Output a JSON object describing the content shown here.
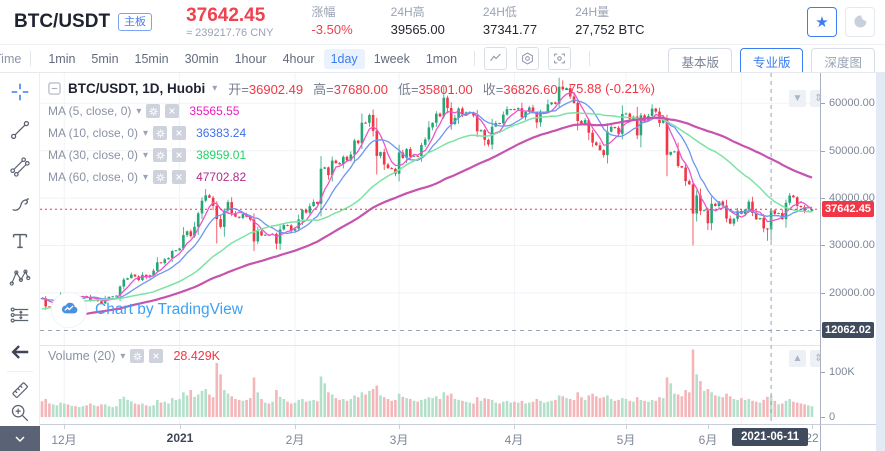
{
  "header": {
    "symbol": "BTC/USDT",
    "board_badge": "主板",
    "price": "37642.45",
    "price_cny": "≈ 239217.76 CNY",
    "stats": [
      {
        "label": "涨幅",
        "value": "-3.50%",
        "red": true
      },
      {
        "label": "24H高",
        "value": "39565.00"
      },
      {
        "label": "24H低",
        "value": "37341.77"
      },
      {
        "label": "24H量",
        "value": "27,752 BTC"
      }
    ]
  },
  "toolbar": {
    "time_label": "Time",
    "intervals": [
      "1min",
      "5min",
      "15min",
      "30min",
      "1hour",
      "4hour",
      "1day",
      "1week",
      "1mon"
    ],
    "selected_interval": "1day",
    "view_buttons": [
      {
        "label": "基本版",
        "style": "default"
      },
      {
        "label": "专业版",
        "style": "active"
      },
      {
        "label": "深度图",
        "style": "muted"
      }
    ]
  },
  "legend": {
    "title": "BTC/USDT, 1D, Huobi",
    "ohlc": [
      {
        "label": "开",
        "value": "36902.49"
      },
      {
        "label": "高",
        "value": "37680.00"
      },
      {
        "label": "低",
        "value": "35801.00"
      },
      {
        "label": "收",
        "value": "36826.60"
      }
    ],
    "change": "-75.88 (-0.21%)",
    "ma_rows": [
      {
        "label": "MA (5, close, 0)",
        "value": "35565.55",
        "color": "#ee1cc0",
        "line_color": "#ef53c8"
      },
      {
        "label": "MA (10, close, 0)",
        "value": "36383.24",
        "color": "#3c6ff0",
        "line_color": "#6e95f2"
      },
      {
        "label": "MA (30, close, 0)",
        "value": "38959.01",
        "color": "#22d465",
        "line_color": "#7ce3a4"
      },
      {
        "label": "MA (60, close, 0)",
        "value": "47702.82",
        "color": "#b42a8c",
        "line_color": "#c653ae"
      }
    ]
  },
  "volume_pane": {
    "label": "Volume (20)",
    "value": "28.429K"
  },
  "watermark": "Chart by TradingView",
  "colors": {
    "up": "#23a776",
    "down": "#f23645",
    "vol_up": "#b2e0cb",
    "vol_down": "#f5b6ba",
    "accent": "#3b7ef0"
  },
  "axes": {
    "price_ticks": [
      60000,
      50000,
      40000,
      30000,
      20000
    ],
    "volume_ticks": [
      {
        "label": "100K",
        "v": 100
      },
      {
        "label": "0",
        "v": 0
      }
    ],
    "last_price_label": "37642.45",
    "crosshair_price_label": "12062.02",
    "crosshair_date_label": "2021-06-11",
    "time_ticks": [
      {
        "label": "12月",
        "i": 6
      },
      {
        "label": "2021",
        "i": 37,
        "bold": true
      },
      {
        "label": "2月",
        "i": 68
      },
      {
        "label": "3月",
        "i": 96
      },
      {
        "label": "4月",
        "i": 127
      },
      {
        "label": "5月",
        "i": 157
      },
      {
        "label": "6月",
        "i": 179
      },
      {
        "label": "22",
        "i": 207
      }
    ]
  },
  "chart_data": {
    "type": "candlestick",
    "symbol": "BTC/USDT",
    "interval": "1D",
    "exchange": "Huobi",
    "visible_range": {
      "start": "2020-11-25",
      "end": "2021-06-20"
    },
    "last_price": 37642.45,
    "price_ylim": [
      9000,
      66400
    ],
    "volume_ylim_k": [
      0,
      170
    ],
    "ma_windows": [
      5,
      10,
      30,
      60
    ],
    "grid_indices": [
      6,
      37,
      68,
      96,
      127,
      157,
      188
    ],
    "crosshair": {
      "index": 196,
      "price": 12062.02,
      "date": "2021-06-11",
      "ohlc": {
        "open": 36902.49,
        "high": 37680.0,
        "low": 35801.0,
        "close": 36826.6,
        "change": -75.88,
        "change_pct": "-0.21%"
      }
    },
    "wick_high_overrides": {
      "44": 41950,
      "140": 64850
    },
    "wick_low_overrides": {
      "47": 30420,
      "90": 45000,
      "175": 30000,
      "195": 31000
    },
    "pre_closes": [
      10700,
      10600,
      10540,
      10670,
      10790,
      10670,
      10600,
      10550,
      11060,
      11290,
      11370,
      11420,
      11530,
      11420,
      11510,
      11320,
      11360,
      11500,
      11750,
      11910,
      12780,
      12970,
      13110,
      13030,
      13070,
      13560,
      13460,
      13560,
      13800,
      13760,
      14020,
      13970,
      14830,
      15480,
      15290,
      15320,
      16320,
      16070,
      16280,
      16340,
      16700,
      17660,
      17780,
      17800,
      18620,
      18640,
      18080,
      18410,
      18370,
      19160,
      18730,
      19380,
      19160,
      18900
    ],
    "closes": [
      18850,
      17150,
      17100,
      17700,
      18180,
      19620,
      19700,
      19200,
      19400,
      18650,
      19150,
      19350,
      19170,
      18320,
      18550,
      18250,
      17780,
      18800,
      19170,
      19280,
      19430,
      21350,
      22800,
      23100,
      23850,
      23470,
      22720,
      23820,
      23240,
      23730,
      24670,
      26450,
      26280,
      27080,
      27360,
      28840,
      29000,
      29370,
      32190,
      33000,
      31990,
      33950,
      36770,
      39450,
      40590,
      40090,
      38350,
      35570,
      33920,
      37390,
      39150,
      36830,
      36070,
      35830,
      36630,
      36070,
      35480,
      30850,
      32990,
      32110,
      32290,
      32250,
      32470,
      30410,
      33400,
      34300,
      34270,
      33110,
      33540,
      35510,
      37480,
      36930,
      38290,
      39190,
      38800,
      46200,
      46480,
      44840,
      47910,
      47390,
      47110,
      48720,
      47950,
      49200,
      52150,
      51580,
      55920,
      55890,
      57530,
      54200,
      48900,
      49710,
      47090,
      46340,
      46190,
      45140,
      49630,
      48500,
      50350,
      48750,
      48920,
      48890,
      51210,
      52380,
      54920,
      55890,
      57810,
      57250,
      61190,
      59020,
      55630,
      56900,
      58910,
      57650,
      58080,
      58120,
      57410,
      54090,
      54340,
      52300,
      51300,
      55070,
      55840,
      55780,
      57620,
      58770,
      58780,
      58730,
      58980,
      57060,
      58200,
      59120,
      58020,
      55960,
      58080,
      58080,
      59790,
      60200,
      59890,
      63500,
      62970,
      63220,
      61450,
      60090,
      56270,
      55680,
      56470,
      53810,
      51730,
      51150,
      50110,
      49080,
      54030,
      55030,
      54850,
      53570,
      57750,
      57830,
      56630,
      57200,
      53240,
      57470,
      56400,
      57350,
      58880,
      58250,
      55870,
      56700,
      49150,
      49700,
      49850,
      46760,
      46450,
      43580,
      42900,
      36750,
      40580,
      37300,
      37450,
      34700,
      38800,
      38330,
      39290,
      38440,
      35680,
      34620,
      35640,
      37330,
      36680,
      37570,
      39240,
      36860,
      35540,
      35800,
      33580,
      33400,
      37400,
      36690,
      36826.6,
      35560,
      39000,
      40520,
      40160,
      38350,
      38100,
      37100,
      37300,
      37642.45
    ],
    "volumes_k": [
      35,
      40,
      30,
      28,
      26,
      32,
      30,
      28,
      25,
      24,
      22,
      24,
      26,
      30,
      26,
      24,
      28,
      28,
      24,
      22,
      24,
      40,
      45,
      38,
      35,
      30,
      28,
      30,
      26,
      24,
      26,
      38,
      32,
      34,
      30,
      42,
      38,
      40,
      55,
      48,
      60,
      45,
      50,
      58,
      62,
      50,
      44,
      120,
      95,
      60,
      52,
      46,
      40,
      38,
      36,
      38,
      42,
      88,
      55,
      40,
      32,
      30,
      34,
      60,
      45,
      40,
      34,
      30,
      32,
      38,
      40,
      34,
      36,
      38,
      35,
      90,
      75,
      55,
      50,
      42,
      38,
      40,
      36,
      40,
      48,
      44,
      55,
      50,
      58,
      62,
      70,
      48,
      44,
      40,
      36,
      38,
      52,
      45,
      42,
      40,
      36,
      34,
      38,
      40,
      44,
      42,
      46,
      40,
      55,
      48,
      52,
      40,
      38,
      36,
      34,
      32,
      30,
      44,
      36,
      42,
      40,
      38,
      32,
      30,
      34,
      36,
      32,
      34,
      32,
      36,
      30,
      32,
      34,
      40,
      36,
      32,
      34,
      36,
      38,
      48,
      46,
      42,
      40,
      38,
      55,
      44,
      38,
      48,
      52,
      46,
      42,
      44,
      48,
      40,
      36,
      38,
      42,
      40,
      36,
      34,
      44,
      38,
      36,
      34,
      38,
      36,
      44,
      42,
      88,
      75,
      52,
      50,
      46,
      60,
      55,
      150,
      95,
      80,
      58,
      62,
      55,
      48,
      46,
      44,
      52,
      46,
      40,
      38,
      42,
      38,
      40,
      36,
      34,
      32,
      38,
      45,
      48,
      36,
      28.4,
      30,
      36,
      40,
      34,
      32,
      30,
      28,
      26,
      24
    ]
  }
}
